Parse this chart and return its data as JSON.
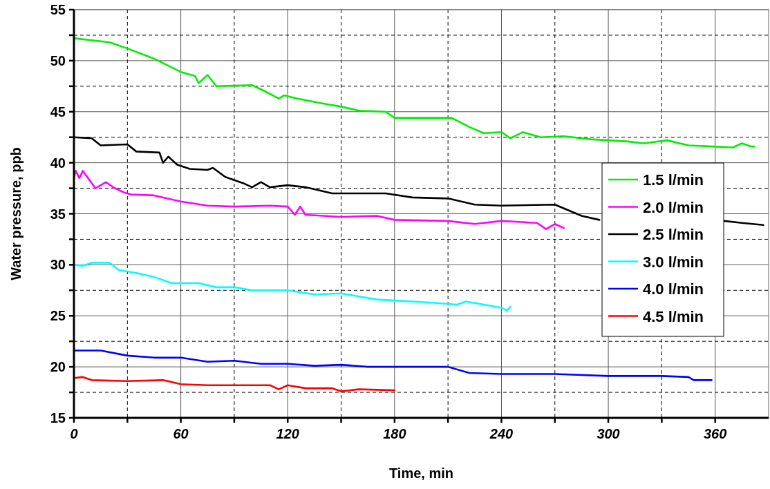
{
  "chart_data": {
    "type": "line",
    "xlabel": "Time, min",
    "ylabel": "Water pressure, ppb",
    "xlim": [
      0,
      390
    ],
    "ylim": [
      15,
      55
    ],
    "xticks": [
      0,
      {
        "value": 30,
        "label": null
      },
      60,
      {
        "value": 90,
        "label": null
      },
      120,
      {
        "value": 150,
        "label": null
      },
      180,
      {
        "value": 210,
        "label": null
      },
      240,
      {
        "value": 270,
        "label": null
      },
      300,
      {
        "value": 330,
        "label": null
      },
      360
    ],
    "yticks": [
      15,
      {
        "value": 17.5,
        "label": null
      },
      20,
      {
        "value": 22.5,
        "label": null
      },
      25,
      {
        "value": 27.5,
        "label": null
      },
      30,
      {
        "value": 32.5,
        "label": null
      },
      35,
      {
        "value": 37.5,
        "label": null
      },
      40,
      {
        "value": 42.5,
        "label": null
      },
      45,
      {
        "value": 47.5,
        "label": null
      },
      50,
      {
        "value": 52.5,
        "label": null
      },
      55
    ],
    "grid": true,
    "legend": "right",
    "marker": "none",
    "line_style": "solid",
    "series": [
      {
        "name": "1.5 l/min",
        "color": "#00ee00",
        "x": [
          0,
          20,
          30,
          45,
          60,
          68,
          70,
          75,
          80,
          100,
          105,
          115,
          118,
          125,
          140,
          150,
          160,
          175,
          180,
          200,
          212,
          222,
          230,
          240,
          245,
          252,
          262,
          275,
          290,
          310,
          320,
          333,
          345,
          370,
          375,
          380,
          382
        ],
        "values": [
          52.2,
          51.8,
          51.2,
          50.2,
          48.9,
          48.5,
          47.8,
          48.6,
          47.5,
          47.6,
          47.2,
          46.3,
          46.6,
          46.3,
          45.8,
          45.5,
          45.1,
          45.0,
          44.4,
          44.4,
          44.4,
          43.5,
          42.9,
          43.0,
          42.4,
          43.0,
          42.5,
          42.6,
          42.3,
          42.1,
          41.9,
          42.2,
          41.7,
          41.5,
          41.9,
          41.6,
          41.6
        ]
      },
      {
        "name": "2.0 l/min",
        "color": "#ff00ff",
        "x": [
          0,
          1,
          3,
          5,
          10,
          12,
          18,
          22,
          28,
          32,
          45,
          60,
          75,
          90,
          110,
          120,
          124,
          127,
          130,
          150,
          170,
          180,
          210,
          225,
          240,
          260,
          265,
          270,
          275
        ],
        "values": [
          38.6,
          39.2,
          38.5,
          39.2,
          38.0,
          37.5,
          38.1,
          37.6,
          37.1,
          36.9,
          36.8,
          36.2,
          35.8,
          35.7,
          35.8,
          35.7,
          34.9,
          35.7,
          34.9,
          34.7,
          34.8,
          34.4,
          34.3,
          34.0,
          34.3,
          34.1,
          33.5,
          34.0,
          33.6
        ]
      },
      {
        "name": "2.5 l/min",
        "color": "#000000",
        "x": [
          0,
          10,
          15,
          30,
          35,
          48,
          50,
          53,
          58,
          65,
          75,
          78,
          85,
          95,
          100,
          105,
          110,
          120,
          130,
          145,
          175,
          190,
          210,
          225,
          240,
          270,
          285,
          295,
          330,
          365,
          375,
          387
        ],
        "values": [
          42.5,
          42.4,
          41.7,
          41.8,
          41.1,
          41.0,
          40.0,
          40.6,
          39.8,
          39.4,
          39.3,
          39.5,
          38.6,
          38.0,
          37.6,
          38.1,
          37.6,
          37.8,
          37.6,
          37.0,
          37.0,
          36.6,
          36.5,
          35.9,
          35.8,
          35.9,
          34.8,
          34.4,
          null,
          34.3,
          34.1,
          33.9
        ]
      },
      {
        "name": "3.0 l/min",
        "color": "#00ffff",
        "x": [
          0,
          5,
          10,
          20,
          25,
          35,
          45,
          55,
          70,
          80,
          90,
          100,
          120,
          135,
          150,
          170,
          180,
          200,
          215,
          220,
          240,
          243,
          245
        ],
        "values": [
          30.0,
          29.9,
          30.2,
          30.2,
          29.5,
          29.2,
          28.8,
          28.2,
          28.2,
          27.8,
          27.8,
          27.5,
          27.5,
          27.1,
          27.2,
          26.6,
          26.5,
          26.3,
          26.1,
          26.4,
          25.8,
          25.5,
          25.9
        ]
      },
      {
        "name": "4.0 l/min",
        "color": "#0000ff",
        "x": [
          0,
          15,
          30,
          45,
          60,
          75,
          90,
          105,
          120,
          135,
          150,
          165,
          180,
          210,
          222,
          240,
          270,
          300,
          330,
          345,
          348,
          358
        ],
        "values": [
          21.6,
          21.6,
          21.1,
          20.9,
          20.9,
          20.5,
          20.6,
          20.3,
          20.3,
          20.1,
          20.2,
          20.0,
          20.0,
          20.0,
          19.4,
          19.3,
          19.3,
          19.1,
          19.1,
          19.0,
          18.7,
          18.7
        ]
      },
      {
        "name": "4.5 l/min",
        "color": "#ff0000",
        "x": [
          0,
          5,
          10,
          30,
          50,
          60,
          75,
          110,
          115,
          120,
          130,
          145,
          150,
          160,
          180
        ],
        "values": [
          18.9,
          19.0,
          18.7,
          18.6,
          18.7,
          18.3,
          18.2,
          18.2,
          17.8,
          18.2,
          17.9,
          17.9,
          17.6,
          17.8,
          17.7
        ]
      }
    ]
  }
}
